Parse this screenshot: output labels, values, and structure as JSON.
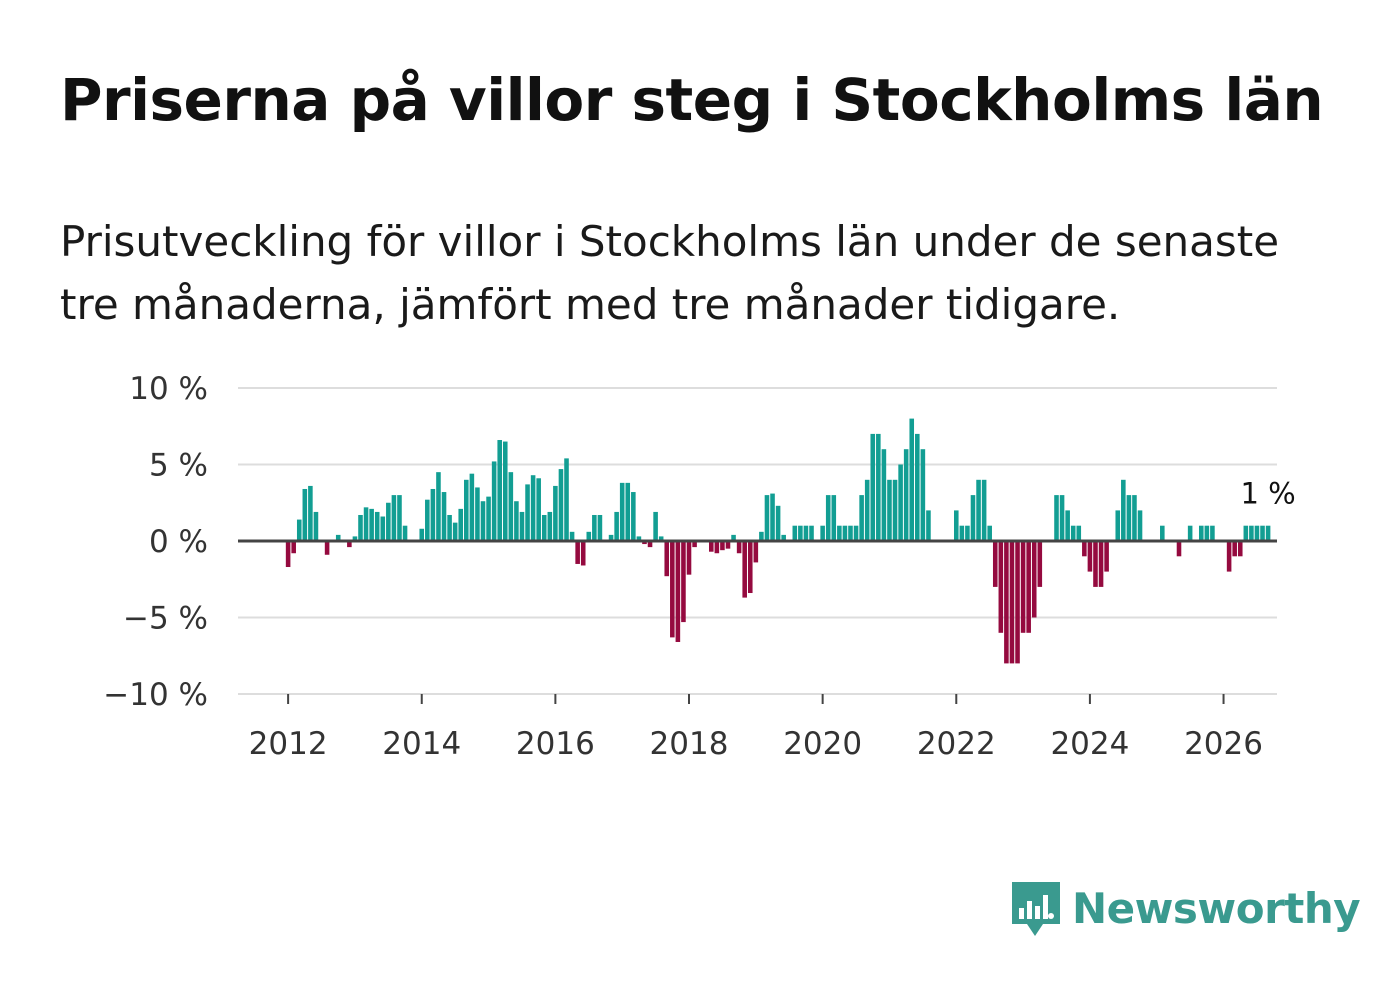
{
  "header": {
    "title": "Priserna på villor steg i Stockholms län",
    "subtitle": "Prisutveckling för villor i Stockholms län under de senaste tre månaderna, jämfört med tre månader tidigare."
  },
  "branding": {
    "name": "Newsworthy",
    "icon": "newsworthy-logo-icon",
    "color": "#3a9a8f"
  },
  "colors": {
    "positive": "#129e93",
    "negative": "#950a3f",
    "gridline": "#dddddd",
    "zeroline": "#444444"
  },
  "chart_data": {
    "type": "bar",
    "title": "Priserna på villor steg i Stockholms län",
    "subtitle": "Prisutveckling för villor i Stockholms län under de senaste tre månaderna, jämfört med tre månader tidigare.",
    "xlabel": "",
    "ylabel": "",
    "x_start": "2012-01",
    "frequency": "monthly",
    "ylim": [
      -10,
      10
    ],
    "xlim": [
      2011.25,
      2026.8
    ],
    "yticks": [
      10,
      5,
      0,
      -5,
      -10
    ],
    "ytick_labels": [
      "10 %",
      "5 %",
      "0 %",
      "−5 %",
      "−10 %"
    ],
    "xticks": [
      2012,
      2014,
      2016,
      2018,
      2020,
      2022,
      2024,
      2026
    ],
    "xtick_labels": [
      "2012",
      "2014",
      "2016",
      "2018",
      "2020",
      "2022",
      "2024",
      "2026"
    ],
    "last_value_label": "1 %",
    "grid": true,
    "values": [
      -1.7,
      -0.8,
      1.4,
      3.4,
      3.6,
      1.9,
      0,
      -0.9,
      0,
      0.4,
      0,
      -0.4,
      0.3,
      1.7,
      2.2,
      2.1,
      1.9,
      1.6,
      2.5,
      3.0,
      3.0,
      1.0,
      0,
      0,
      0.8,
      2.7,
      3.4,
      4.5,
      3.2,
      1.7,
      1.2,
      2.1,
      4.0,
      4.4,
      3.5,
      2.6,
      2.9,
      5.2,
      6.6,
      6.5,
      4.5,
      2.6,
      1.9,
      3.7,
      4.3,
      4.1,
      1.7,
      1.9,
      3.6,
      4.7,
      5.4,
      0.6,
      -1.5,
      -1.6,
      0.6,
      1.7,
      1.7,
      0,
      0.4,
      1.9,
      3.8,
      3.8,
      3.2,
      0.3,
      -0.2,
      -0.4,
      1.9,
      0.3,
      -2.3,
      -6.3,
      -6.6,
      -5.3,
      -2.2,
      -0.4,
      0,
      0,
      -0.7,
      -0.8,
      -0.6,
      -0.5,
      0.4,
      -0.8,
      -3.7,
      -3.4,
      -1.4,
      0.6,
      3.0,
      3.1,
      2.3,
      0.4,
      0,
      1.0,
      1.0,
      1.0,
      1.0,
      0,
      1.0,
      3.0,
      3.0,
      1.0,
      1.0,
      1.0,
      1.0,
      3.0,
      4.0,
      7.0,
      7.0,
      6.0,
      4.0,
      4.0,
      5.0,
      6.0,
      8.0,
      7.0,
      6.0,
      2.0,
      0,
      0,
      0,
      0,
      2.0,
      1.0,
      1.0,
      3.0,
      4.0,
      4.0,
      1.0,
      -3.0,
      -6.0,
      -8.0,
      -8.0,
      -8.0,
      -6.0,
      -6.0,
      -5.0,
      -3.0,
      0,
      0,
      3.0,
      3.0,
      2.0,
      1.0,
      1.0,
      -1.0,
      -2.0,
      -3.0,
      -3.0,
      -2.0,
      0,
      2.0,
      4.0,
      3.0,
      3.0,
      2.0,
      0,
      0,
      0,
      1.0,
      0,
      0,
      -1.0,
      0,
      1.0,
      0,
      1.0,
      1.0,
      1.0,
      0,
      0,
      -2.0,
      -1.0,
      -1.0,
      1.0,
      1.0,
      1.0,
      1.0,
      1.0
    ]
  }
}
